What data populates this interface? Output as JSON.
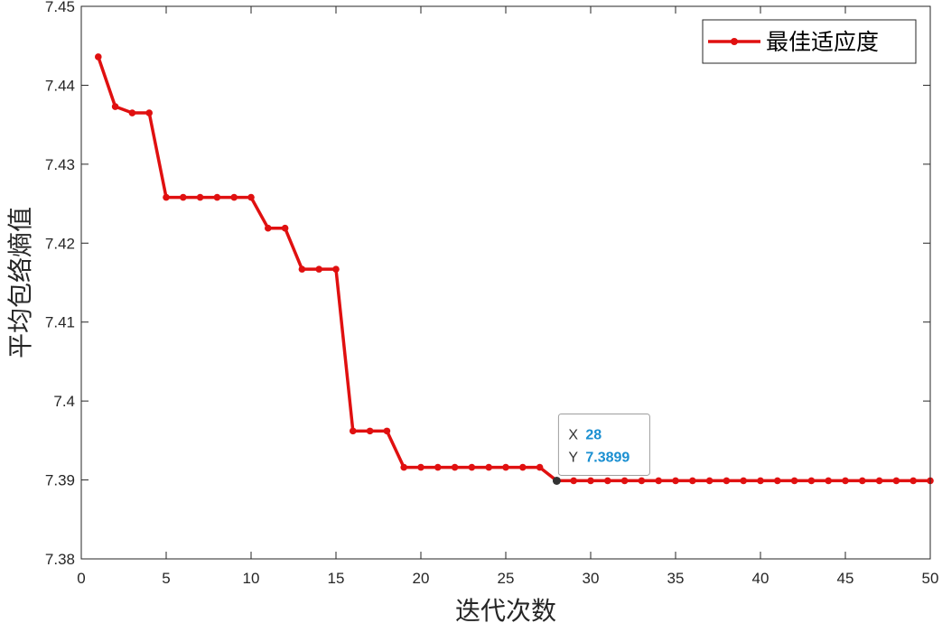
{
  "chart_data": {
    "type": "line",
    "xlabel": "迭代次数",
    "ylabel": "平均包络熵值",
    "xlim": [
      0,
      50
    ],
    "ylim": [
      7.38,
      7.45
    ],
    "xticks": [
      "0",
      "5",
      "10",
      "15",
      "20",
      "25",
      "30",
      "35",
      "40",
      "45",
      "50"
    ],
    "yticks": [
      "7.38",
      "7.39",
      "7.4",
      "7.41",
      "7.42",
      "7.43",
      "7.44",
      "7.45"
    ],
    "legend_position": "top-right",
    "grid": false,
    "series": [
      {
        "name": "最佳适应度",
        "color": "#e01010",
        "marker": "circle",
        "x": [
          1,
          2,
          3,
          4,
          5,
          6,
          7,
          8,
          9,
          10,
          11,
          12,
          13,
          14,
          15,
          16,
          17,
          18,
          19,
          20,
          21,
          22,
          23,
          24,
          25,
          26,
          27,
          28,
          29,
          30,
          31,
          32,
          33,
          34,
          35,
          36,
          37,
          38,
          39,
          40,
          41,
          42,
          43,
          44,
          45,
          46,
          47,
          48,
          49,
          50
        ],
        "values": [
          7.4436,
          7.4373,
          7.4365,
          7.4365,
          7.4258,
          7.4258,
          7.4258,
          7.4258,
          7.4258,
          7.4258,
          7.4219,
          7.4219,
          7.4167,
          7.4167,
          7.4167,
          7.3962,
          7.3962,
          7.3962,
          7.3916,
          7.3916,
          7.3916,
          7.3916,
          7.3916,
          7.3916,
          7.3916,
          7.3916,
          7.3916,
          7.3899,
          7.3899,
          7.3899,
          7.3899,
          7.3899,
          7.3899,
          7.3899,
          7.3899,
          7.3899,
          7.3899,
          7.3899,
          7.3899,
          7.3899,
          7.3899,
          7.3899,
          7.3899,
          7.3899,
          7.3899,
          7.3899,
          7.3899,
          7.3899,
          7.3899,
          7.3899
        ]
      }
    ],
    "datatip": {
      "x_key": "X",
      "x_value": "28",
      "y_key": "Y",
      "y_value": "7.3899",
      "point": [
        28,
        7.3899
      ]
    }
  }
}
